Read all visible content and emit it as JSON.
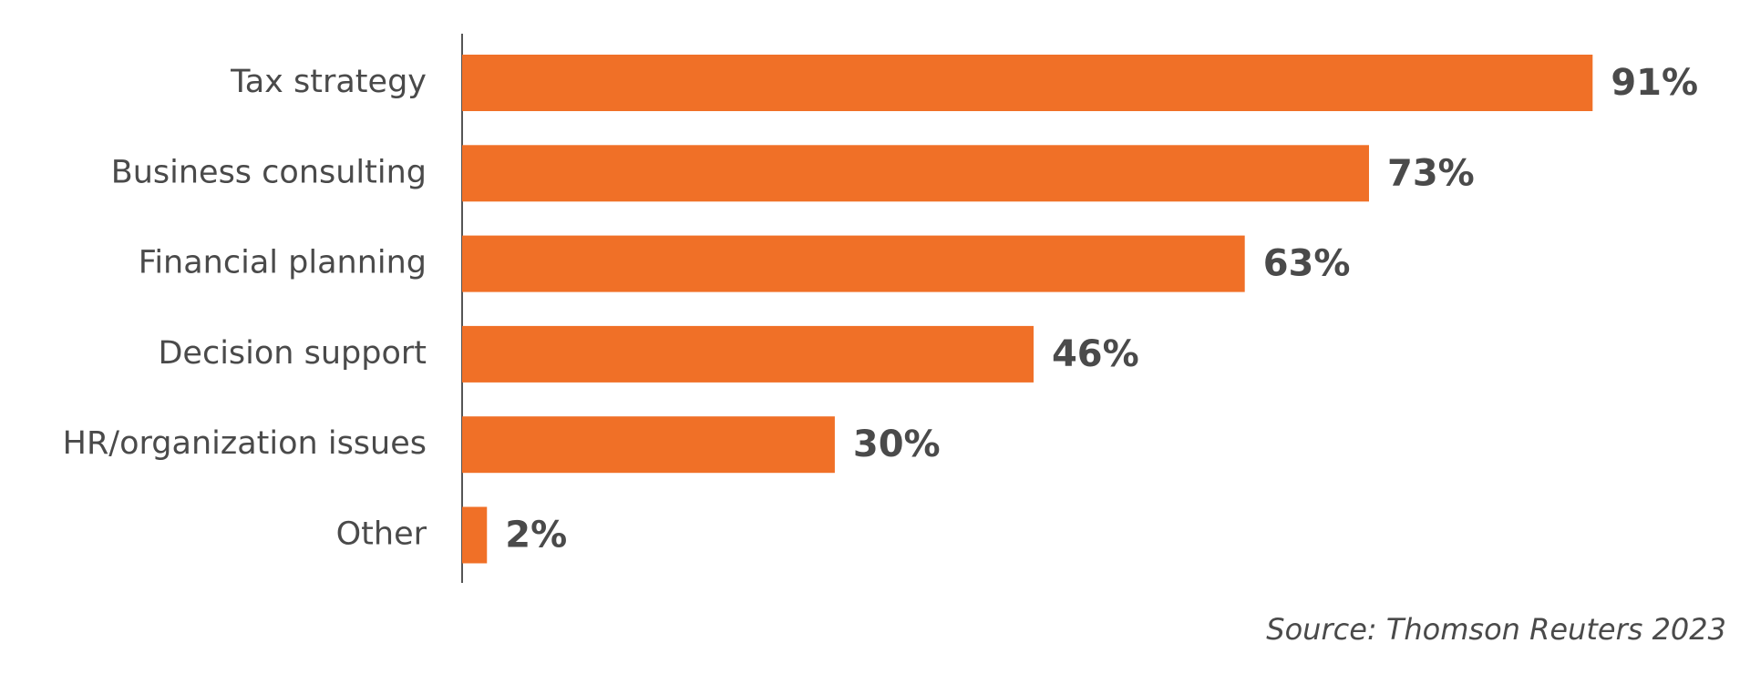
{
  "chart_data": {
    "type": "bar",
    "orientation": "horizontal",
    "categories": [
      "Tax strategy",
      "Business consulting",
      "Financial planning",
      "Decision support",
      "HR/organization issues",
      "Other"
    ],
    "values": [
      91,
      73,
      63,
      46,
      30,
      2
    ],
    "value_labels": [
      "91%",
      "73%",
      "63%",
      "46%",
      "30%",
      "2%"
    ],
    "color": "#f07027",
    "source": "Source: Thomson Reuters 2023"
  }
}
